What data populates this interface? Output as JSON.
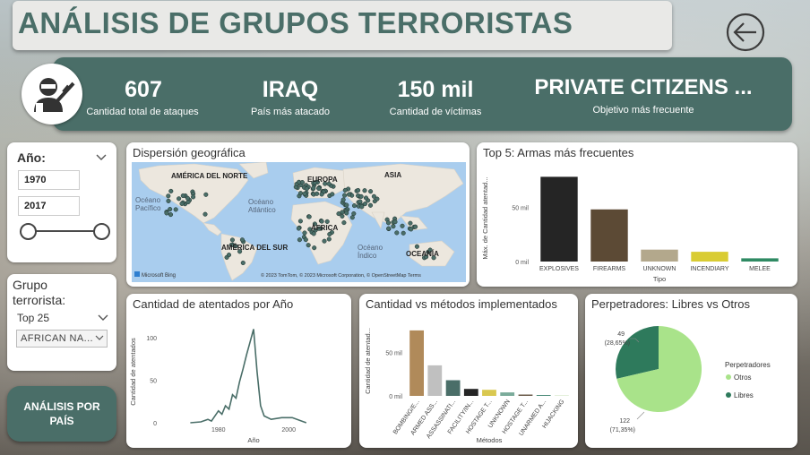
{
  "page_title": "ANÁLISIS DE GRUPOS TERRORISTAS",
  "kpis": [
    {
      "value": "607",
      "label": "Cantidad total de ataques"
    },
    {
      "value": "IRAQ",
      "label": "País  más atacado"
    },
    {
      "value": "150 mil",
      "label": "Cantidad de víctimas"
    },
    {
      "value": "PRIVATE CITIZENS ...",
      "label": "Objetivo más frecuente"
    }
  ],
  "year_slicer": {
    "label": "Año:",
    "from": "1970",
    "to": "2017",
    "range_fraction": [
      0,
      1
    ]
  },
  "group_slicer": {
    "label": "Grupo terrorista:",
    "selected": "Top 25",
    "value": "AFRICAN NA..."
  },
  "nav_button": {
    "label": "ANÁLISIS POR PAÍS"
  },
  "map": {
    "title": "Dispersión geográfica",
    "labels": [
      "AMÉRICA DEL NORTE",
      "EUROPA",
      "ASIA",
      "Océano Pacífico",
      "Océano Atlántico",
      "ÁFRICA",
      "AMÉRICA DEL SUR",
      "Océano Índico",
      "OCEANÍA"
    ],
    "attribution": "© 2023 TomTom, © 2023 Microsoft Corporation, © OpenStreetMap  Terms",
    "logo": "Microsoft Bing"
  },
  "weapons_chart": {
    "title": "Top 5: Armas más frecuentes",
    "chart_data": {
      "type": "bar",
      "categories": [
        "EXPLOSIVES",
        "FIREARMS",
        "UNKNOWN",
        "INCENDIARY",
        "MELEE"
      ],
      "values": [
        78000,
        48000,
        11000,
        9000,
        3000
      ],
      "colors": [
        "#252525",
        "#5c4a35",
        "#b3a88c",
        "#d9cc33",
        "#2f8a63"
      ],
      "ylabel": "Máx. de Cantidad atentad...",
      "xlabel": "Tipo",
      "yticks": [
        "0 mil",
        "50 mil"
      ],
      "ylim": [
        0,
        80000
      ]
    }
  },
  "attacks_year_chart": {
    "title": "Cantidad de atentados por Año",
    "chart_data": {
      "type": "line",
      "x": [
        1972,
        1975,
        1977,
        1978,
        1980,
        1981,
        1982,
        1983,
        1984,
        1985,
        1986,
        1987,
        1988,
        1989,
        1990,
        1991,
        1992,
        1993,
        1995,
        1998,
        2001,
        2005
      ],
      "y": [
        0,
        1,
        4,
        2,
        14,
        10,
        20,
        16,
        33,
        29,
        48,
        63,
        80,
        95,
        110,
        60,
        20,
        8,
        4,
        6,
        6,
        0
      ],
      "xlabel": "Año",
      "ylabel": "Cantidad de atentados",
      "xticks": [
        "1980",
        "2000"
      ],
      "yticks": [
        "0",
        "50",
        "100"
      ],
      "ylim": [
        0,
        120
      ],
      "xlim": [
        1965,
        2015
      ],
      "color": "#4a6e68"
    }
  },
  "methods_chart": {
    "title": "Cantidad vs métodos implementados",
    "chart_data": {
      "type": "bar",
      "categories": [
        "BOMBING/E...",
        "ARMED ASS...",
        "ASSASSINATI...",
        "FACILITY/IN...",
        "HOSTAGE T...",
        "UNKNOWN",
        "HOSTAGE T...",
        "UNARMED A...",
        "HIJACKING"
      ],
      "values": [
        75000,
        35000,
        18000,
        8000,
        7000,
        4000,
        1500,
        1000,
        500
      ],
      "colors": [
        "#b08a5a",
        "#c0c0c0",
        "#4a6e68",
        "#252525",
        "#d9c850",
        "#7aab9a",
        "#6b5b4a",
        "#4d8c7a",
        "#c8e0b8"
      ],
      "ylabel": "Cantidad de atentad...",
      "xlabel": "Métodos",
      "yticks": [
        "0 mil",
        "50 mil"
      ],
      "ylim": [
        0,
        80000
      ]
    }
  },
  "perpetrators_chart": {
    "title": "Perpetradores: Libres vs Otros",
    "chart_data": {
      "type": "pie",
      "slices": [
        {
          "name": "Otros",
          "value": 122,
          "pct": "71,35%",
          "color": "#a9e38a"
        },
        {
          "name": "Libres",
          "value": 49,
          "pct": "28,65%",
          "color": "#2e7a5c"
        }
      ],
      "labels": [
        "49",
        "(28,65%)",
        "122",
        "(71,35%)"
      ],
      "legend_title": "Perpetradores",
      "legend_position": "right"
    }
  },
  "icons": {
    "back": "back-arrow-icon",
    "avatar": "terrorist-icon",
    "chevron": "chevron-down-icon"
  }
}
